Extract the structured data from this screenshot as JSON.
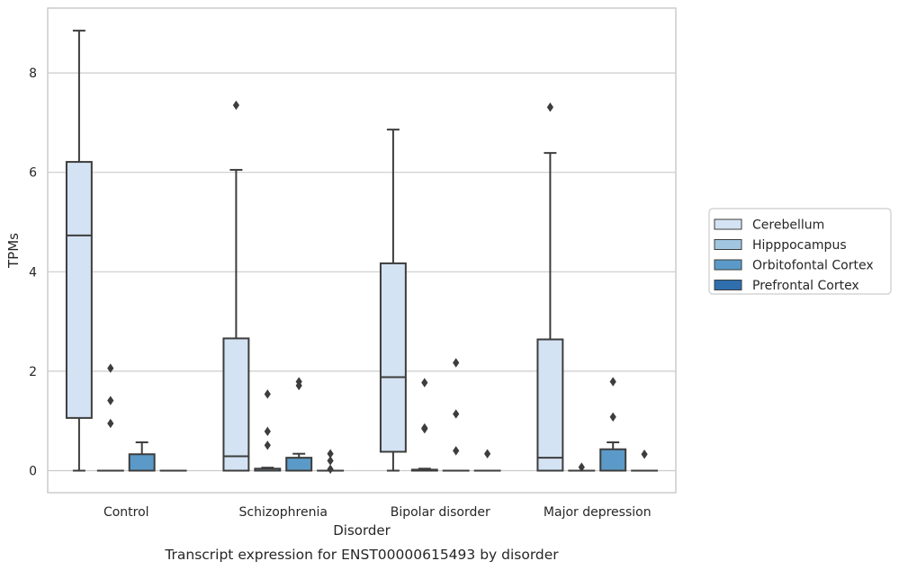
{
  "chart_data": {
    "type": "box",
    "caption": "Transcript expression for ENST00000615493 by disorder",
    "xlabel": "Disorder",
    "ylabel": "TPMs",
    "ylim": [
      -0.43,
      9.3
    ],
    "yticks": [
      0,
      2,
      4,
      6,
      8
    ],
    "grid": "horizontal",
    "legend_position": "right",
    "categories": [
      "Control",
      "Schizophrenia",
      "Bipolar disorder",
      "Major depression"
    ],
    "series": [
      {
        "name": "Cerebellum",
        "color": "#d4e3f3",
        "boxes": [
          {
            "whislo": 0.0,
            "q1": 1.06,
            "median": 4.73,
            "q3": 6.21,
            "whishi": 8.85,
            "fliers": []
          },
          {
            "whislo": 0.0,
            "q1": 0.0,
            "median": 0.29,
            "q3": 2.66,
            "whishi": 6.05,
            "fliers": [
              7.35
            ]
          },
          {
            "whislo": 0.0,
            "q1": 0.38,
            "median": 1.88,
            "q3": 4.17,
            "whishi": 6.86,
            "fliers": []
          },
          {
            "whislo": 0.0,
            "q1": 0.0,
            "median": 0.26,
            "q3": 2.64,
            "whishi": 6.39,
            "fliers": [
              7.31
            ]
          }
        ]
      },
      {
        "name": "Hipppocampus",
        "color": "#a1c6e0",
        "boxes": [
          {
            "whislo": 0.0,
            "q1": 0.0,
            "median": 0.0,
            "q3": 0.0,
            "whishi": 0.0,
            "fliers": [
              0.95,
              1.41,
              2.06
            ]
          },
          {
            "whislo": 0.0,
            "q1": 0.0,
            "median": 0.0,
            "q3": 0.04,
            "whishi": 0.06,
            "fliers": [
              0.51,
              0.79,
              1.54
            ]
          },
          {
            "whislo": 0.0,
            "q1": 0.0,
            "median": 0.0,
            "q3": 0.02,
            "whishi": 0.04,
            "fliers": [
              0.84,
              0.86,
              1.77
            ]
          },
          {
            "whislo": 0.0,
            "q1": 0.0,
            "median": 0.0,
            "q3": 0.0,
            "whishi": 0.0,
            "fliers": [
              0.07
            ]
          }
        ]
      },
      {
        "name": "Orbitofontal Cortex",
        "color": "#5b9ac8",
        "boxes": [
          {
            "whislo": 0.0,
            "q1": 0.0,
            "median": 0.0,
            "q3": 0.33,
            "whishi": 0.57,
            "fliers": []
          },
          {
            "whislo": 0.0,
            "q1": 0.0,
            "median": 0.0,
            "q3": 0.26,
            "whishi": 0.34,
            "fliers": [
              1.71,
              1.79
            ]
          },
          {
            "whislo": 0.0,
            "q1": 0.0,
            "median": 0.0,
            "q3": 0.0,
            "whishi": 0.0,
            "fliers": [
              0.4,
              1.14,
              2.17
            ]
          },
          {
            "whislo": 0.0,
            "q1": 0.0,
            "median": 0.0,
            "q3": 0.43,
            "whishi": 0.57,
            "fliers": [
              1.08,
              1.79
            ]
          }
        ]
      },
      {
        "name": "Prefrontal Cortex",
        "color": "#2f6fae",
        "boxes": [
          {
            "whislo": 0.0,
            "q1": 0.0,
            "median": 0.0,
            "q3": 0.0,
            "whishi": 0.0,
            "fliers": []
          },
          {
            "whislo": 0.0,
            "q1": 0.0,
            "median": 0.0,
            "q3": 0.0,
            "whishi": 0.0,
            "fliers": [
              0.03,
              0.2,
              0.34
            ]
          },
          {
            "whislo": 0.0,
            "q1": 0.0,
            "median": 0.0,
            "q3": 0.0,
            "whishi": 0.0,
            "fliers": [
              0.34
            ]
          },
          {
            "whislo": 0.0,
            "q1": 0.0,
            "median": 0.0,
            "q3": 0.0,
            "whishi": 0.0,
            "fliers": [
              0.33
            ]
          }
        ]
      }
    ]
  }
}
